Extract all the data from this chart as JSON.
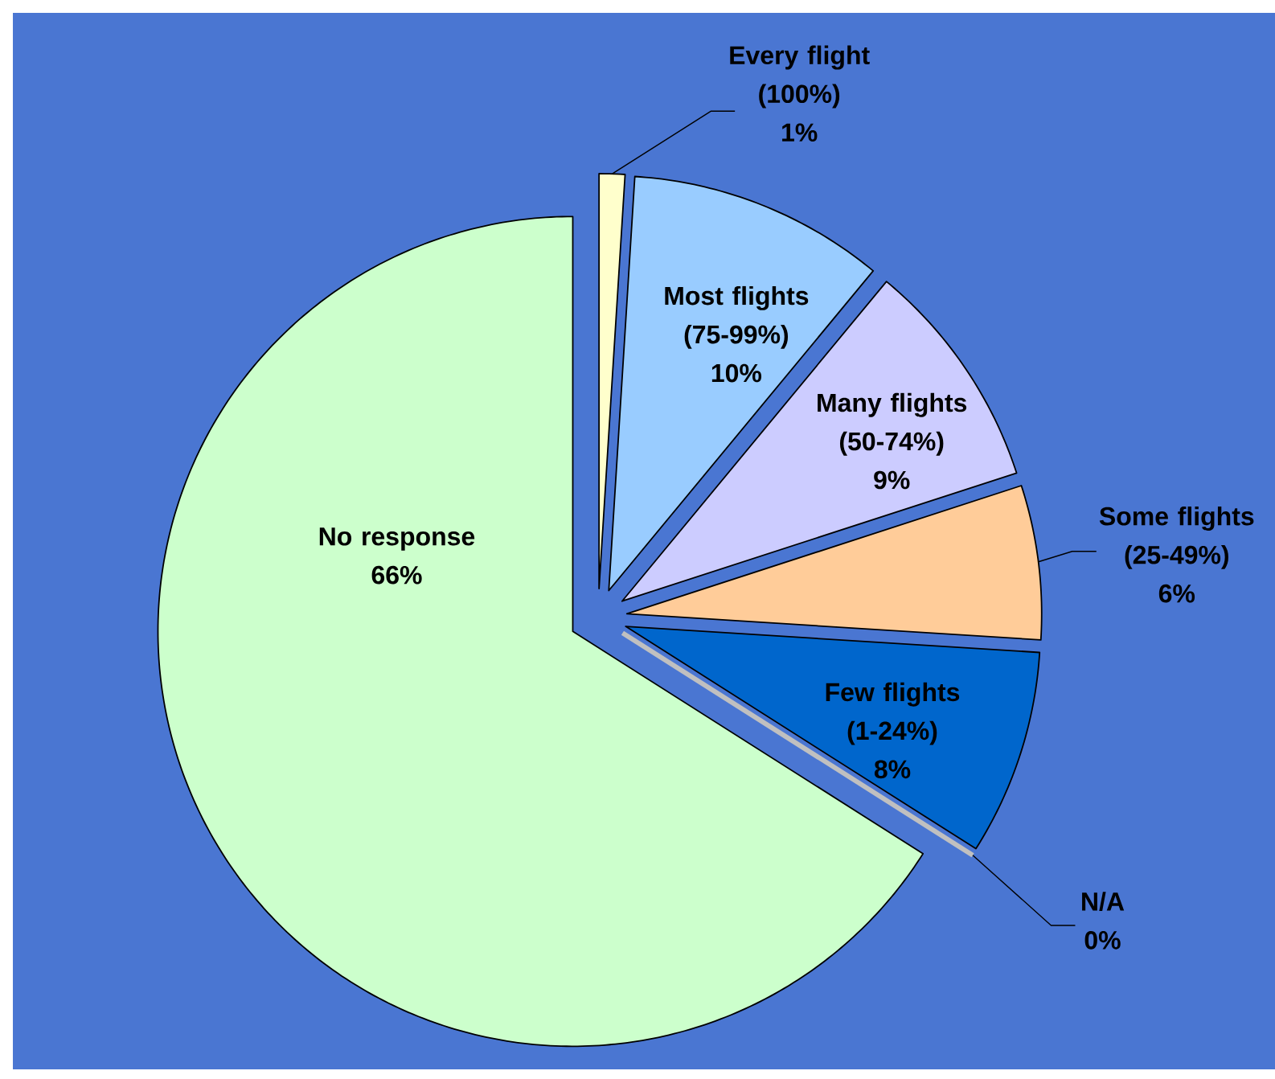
{
  "chart_data": {
    "type": "pie",
    "categories": [
      "Every flight (100%)",
      "Most flights (75-99%)",
      "Many flights (50-74%)",
      "Some flights (25-49%)",
      "Few flights (1-24%)",
      "N/A",
      "No response"
    ],
    "values": [
      1,
      10,
      9,
      6,
      8,
      0,
      66
    ],
    "colors": [
      "#ffffcc",
      "#99ccff",
      "#ccccff",
      "#ffcc99",
      "#0066cc",
      "#c0c0c0",
      "#ccffcc"
    ],
    "value_labels": [
      "1%",
      "10%",
      "9%",
      "6%",
      "8%",
      "0%",
      "66%"
    ]
  }
}
